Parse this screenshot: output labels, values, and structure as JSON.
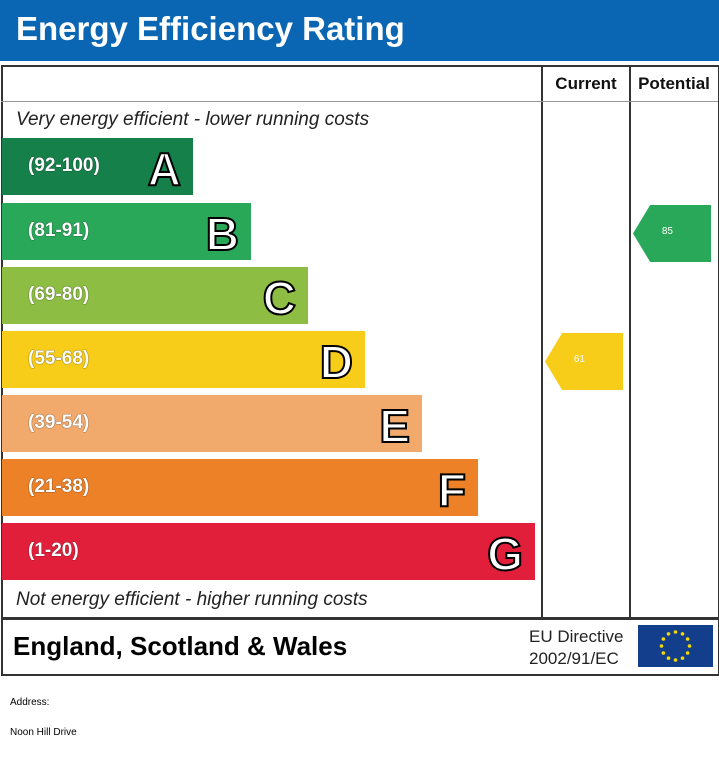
{
  "chart_data": {
    "type": "bar",
    "title": "Energy Efficiency Rating",
    "columns": [
      "Current",
      "Potential"
    ],
    "top_note": "Very energy efficient - lower running costs",
    "bottom_note": "Not energy efficient - higher running costs",
    "bands": [
      {
        "letter": "A",
        "range": "(92-100)",
        "color": "#16804a"
      },
      {
        "letter": "B",
        "range": "(81-91)",
        "color": "#2aa85a"
      },
      {
        "letter": "C",
        "range": "(69-80)",
        "color": "#8dbd43"
      },
      {
        "letter": "D",
        "range": "(55-68)",
        "color": "#f7cd1a"
      },
      {
        "letter": "E",
        "range": "(39-54)",
        "color": "#f2aa6c"
      },
      {
        "letter": "F",
        "range": "(21-38)",
        "color": "#ec8127"
      },
      {
        "letter": "G",
        "range": "(1-20)",
        "color": "#e21f3b"
      }
    ],
    "current": {
      "value": "61",
      "band": "D",
      "color": "#f7cd1a"
    },
    "potential": {
      "value": "85",
      "band": "B",
      "color": "#2aa85a"
    }
  },
  "footer": {
    "region": "England, Scotland & Wales",
    "directive_line1": "EU Directive",
    "directive_line2": "2002/91/EC"
  },
  "address": {
    "label": "Address:",
    "value": "Noon Hill Drive"
  }
}
